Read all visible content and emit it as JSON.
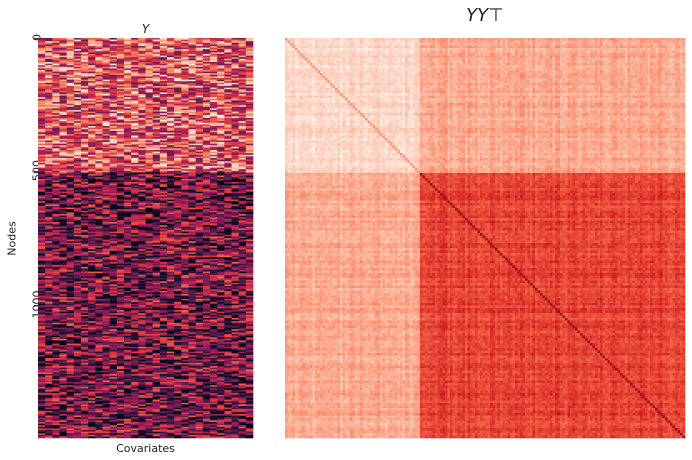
{
  "chart_data": [
    {
      "type": "heatmap",
      "title": "Y",
      "xlabel": "Covariates",
      "ylabel": "Nodes",
      "yticks": [
        "0",
        "500",
        "1000"
      ],
      "ytick_values": [
        0,
        500,
        1000
      ],
      "n_rows": 1500,
      "n_cols": 30,
      "blocks": [
        {
          "rows": [
            0,
            500
          ],
          "mean_level": 0.62
        },
        {
          "rows": [
            500,
            1500
          ],
          "mean_level": 0.3
        }
      ],
      "colormap": "rocket",
      "colors": [
        "#03051a",
        "#4c1d4b",
        "#a11a5b",
        "#e83f3f",
        "#f69c73",
        "#faebdd"
      ]
    },
    {
      "type": "heatmap",
      "title": "YY⊤",
      "n_rows": 1500,
      "n_cols": 1500,
      "blocks": [
        {
          "rows": [
            0,
            500
          ],
          "cols": [
            0,
            500
          ],
          "level": 0.12
        },
        {
          "rows": [
            0,
            500
          ],
          "cols": [
            500,
            1500
          ],
          "level": 0.3
        },
        {
          "rows": [
            500,
            1500
          ],
          "cols": [
            0,
            500
          ],
          "level": 0.3
        },
        {
          "rows": [
            500,
            1500
          ],
          "cols": [
            500,
            1500
          ],
          "level": 0.62
        }
      ],
      "colormap": "Reds",
      "colors": [
        "#fff5f0",
        "#fcbba1",
        "#fb6a4a",
        "#cb181d",
        "#67000d"
      ]
    }
  ]
}
